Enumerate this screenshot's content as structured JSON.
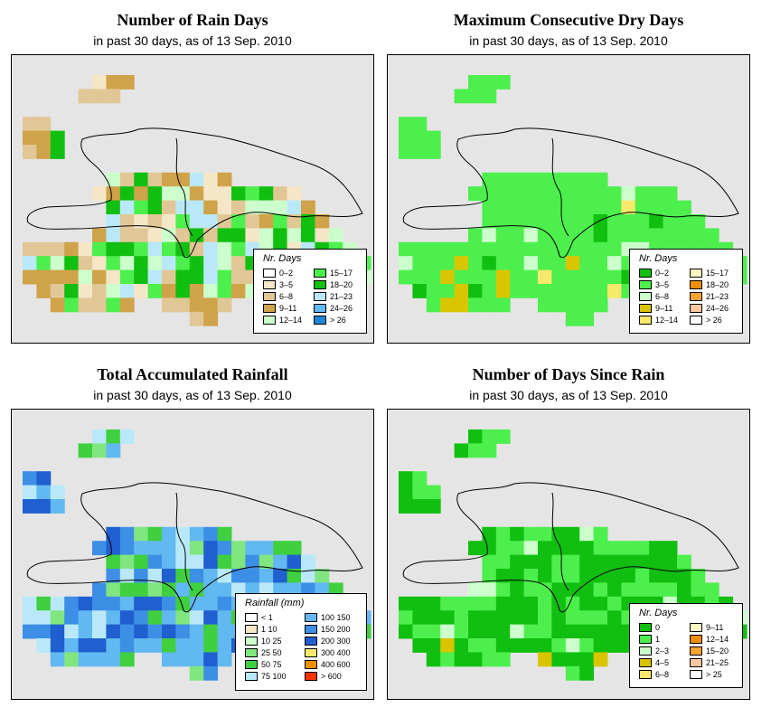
{
  "panels": [
    {
      "id": "rain-days",
      "title": "Number of Rain Days",
      "subtitle": "in past 30 days, as of  13 Sep. 2010",
      "legend": {
        "title": "Nr. Days",
        "items": [
          {
            "label": "0–2",
            "color": "#ffffff"
          },
          {
            "label": "3–5",
            "color": "#f5e6c8"
          },
          {
            "label": "6–8",
            "color": "#e2c796"
          },
          {
            "label": "9–11",
            "color": "#cfa349"
          },
          {
            "label": "12–14",
            "color": "#ccffcc"
          },
          {
            "label": "15–17",
            "color": "#4def4d"
          },
          {
            "label": "18–20",
            "color": "#11bf11"
          },
          {
            "label": "21–23",
            "color": "#b9e9f9"
          },
          {
            "label": "24–26",
            "color": "#62b8f0"
          },
          {
            "label": "> 26",
            "color": "#1e86d8"
          }
        ]
      }
    },
    {
      "id": "max-dry-days",
      "title": "Maximum Consecutive Dry Days",
      "subtitle": "in past 30 days, as of  13 Sep. 2010",
      "legend": {
        "title": "Nr. Days",
        "items": [
          {
            "label": "0–2",
            "color": "#11bf11"
          },
          {
            "label": "3–5",
            "color": "#4def4d"
          },
          {
            "label": "6–8",
            "color": "#ccffcc"
          },
          {
            "label": "9–11",
            "color": "#d9c400"
          },
          {
            "label": "12–14",
            "color": "#f7e96b"
          },
          {
            "label": "15–17",
            "color": "#fff8c4"
          },
          {
            "label": "18–20",
            "color": "#f08f00"
          },
          {
            "label": "21–23",
            "color": "#f5a333"
          },
          {
            "label": "24–26",
            "color": "#ffc8a0"
          },
          {
            "label": "> 26",
            "color": "#ffffff"
          }
        ]
      }
    },
    {
      "id": "total-rainfall",
      "title": "Total Accumulated Rainfall",
      "subtitle": "in past 30 days, as of  13 Sep. 2010",
      "legend": {
        "title": "Rainfall (mm)",
        "items": [
          {
            "label": "< 1",
            "color": "#ffffff"
          },
          {
            "label": "1   10",
            "color": "#f5e6c8"
          },
          {
            "label": "10   25",
            "color": "#ccffcc"
          },
          {
            "label": "25   50",
            "color": "#80e680"
          },
          {
            "label": "50   75",
            "color": "#3fcf3f"
          },
          {
            "label": "75  100",
            "color": "#b9e9f9"
          },
          {
            "label": "100  150",
            "color": "#62b8f0"
          },
          {
            "label": "150  200",
            "color": "#3d8fe6"
          },
          {
            "label": "200  300",
            "color": "#1f5fcf"
          },
          {
            "label": "300  400",
            "color": "#f7e96b"
          },
          {
            "label": "400  600",
            "color": "#f08f00"
          },
          {
            "label": "> 600",
            "color": "#ff3300"
          }
        ]
      }
    },
    {
      "id": "days-since-rain",
      "title": "Number of Days Since Rain",
      "subtitle": "in past 30 days, as of  13 Sep. 2010",
      "legend": {
        "title": "Nr. Days",
        "items": [
          {
            "label": "0",
            "color": "#11bf11"
          },
          {
            "label": "1",
            "color": "#4def4d"
          },
          {
            "label": "2–3",
            "color": "#ccffcc"
          },
          {
            "label": "4–5",
            "color": "#d9c400"
          },
          {
            "label": "6–8",
            "color": "#f7e96b"
          },
          {
            "label": "9–11",
            "color": "#fff8c4"
          },
          {
            "label": "12–14",
            "color": "#f08f00"
          },
          {
            "label": "15–20",
            "color": "#f5a333"
          },
          {
            "label": "21–25",
            "color": "#ffc8a0"
          },
          {
            "label": "> 25",
            "color": "#ffffff"
          }
        ]
      }
    }
  ]
}
